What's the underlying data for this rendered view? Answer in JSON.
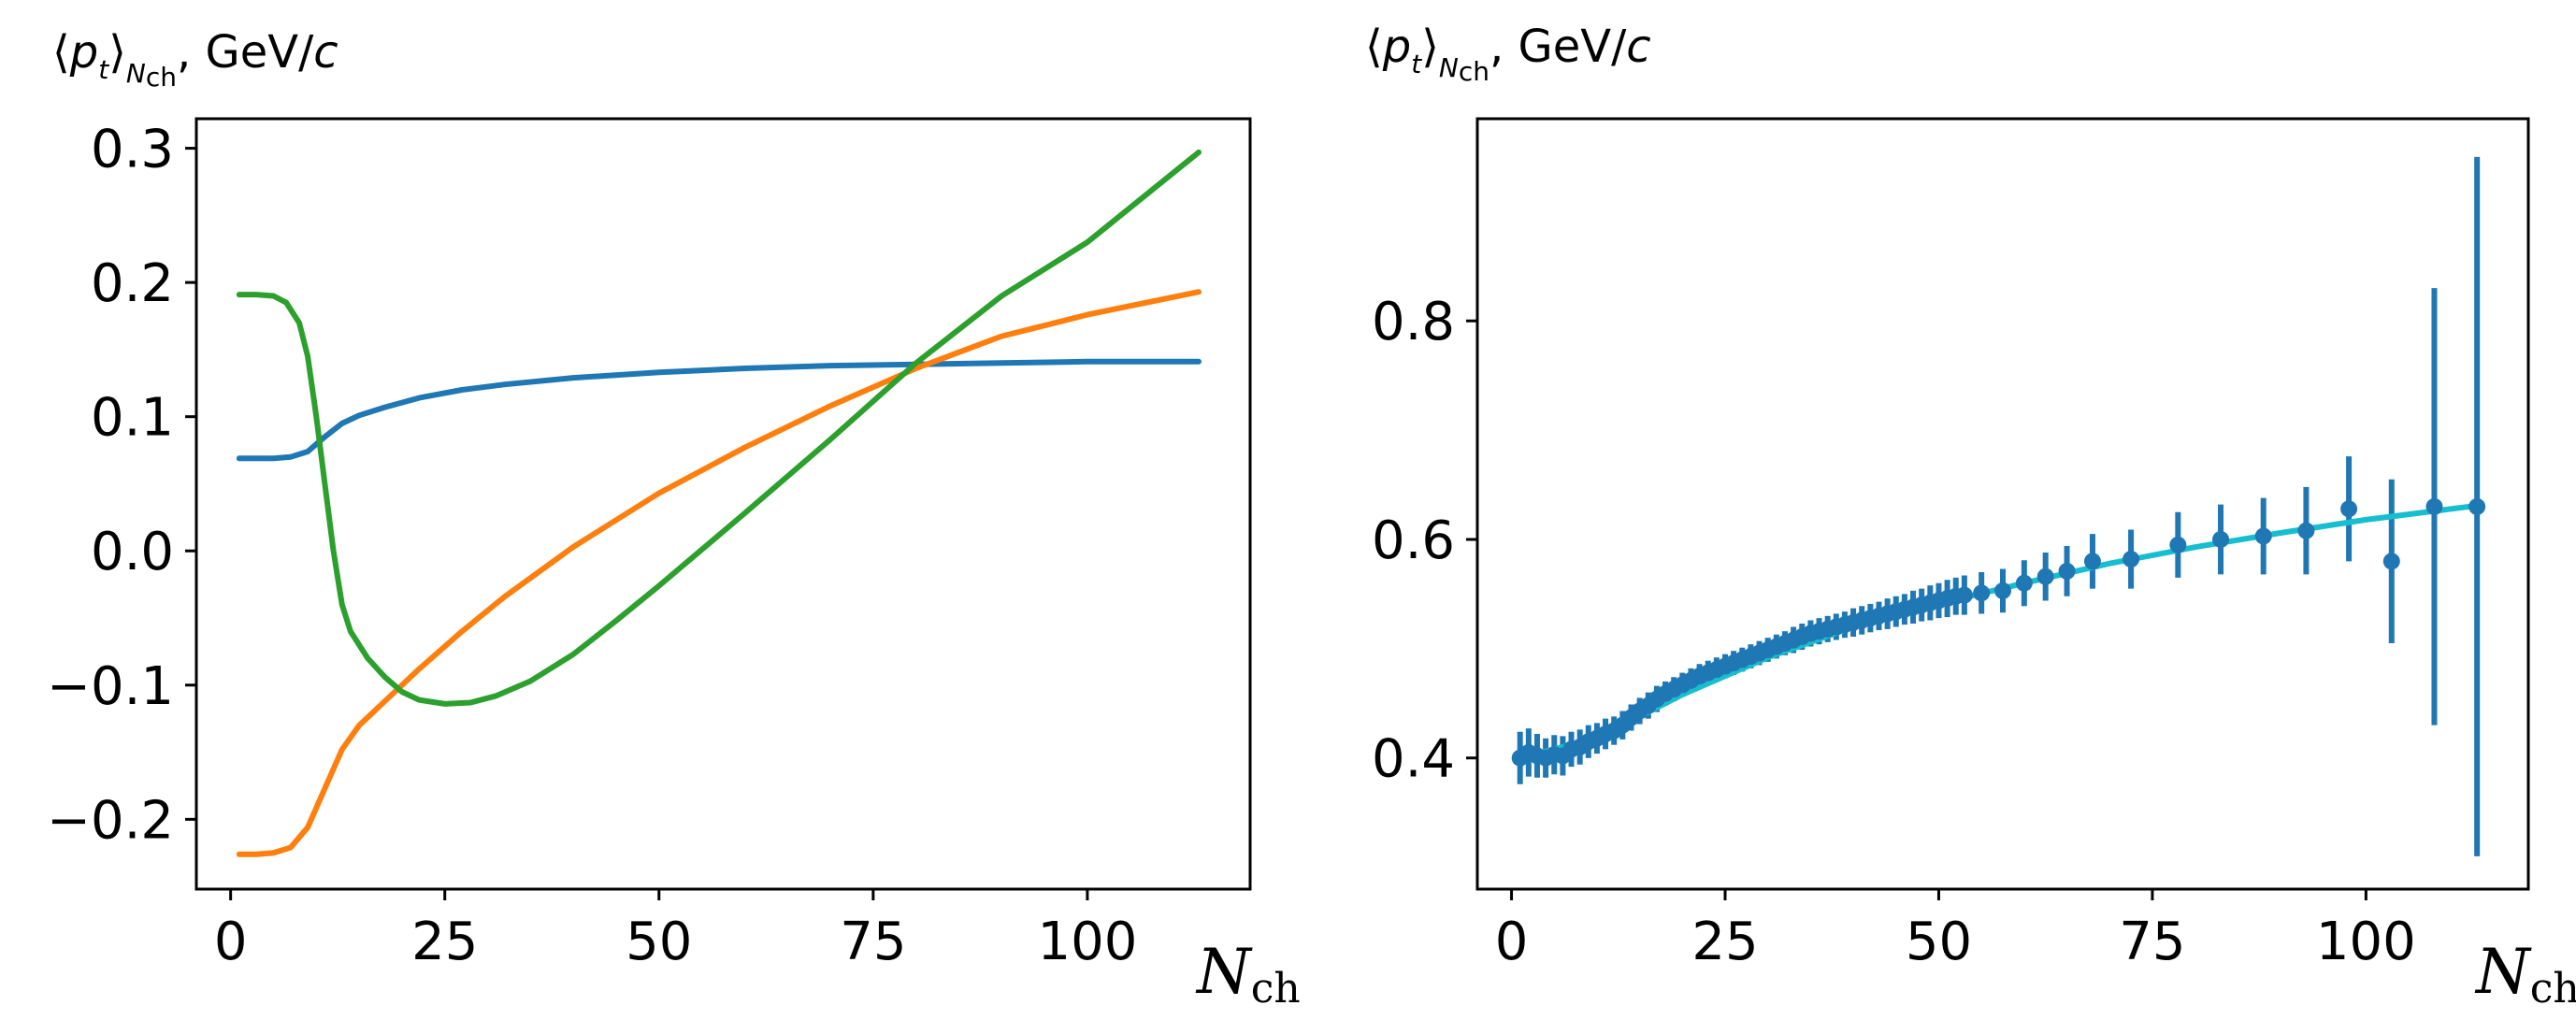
{
  "chart_data": [
    {
      "type": "line",
      "ylabel": {
        "bracket_open": "⟨",
        "symbol": "p",
        "symbol_sub": "t",
        "bracket_close": "⟩",
        "outer_sub": "N",
        "outer_sub_sub": "ch",
        "unit": ", GeV/",
        "unit_var": "c"
      },
      "xlabel": {
        "symbol": "N",
        "sub": "ch"
      },
      "xlim": [
        -4,
        119
      ],
      "ylim": [
        -0.252,
        0.322
      ],
      "xticks": [
        0,
        25,
        50,
        75,
        100
      ],
      "xtick_labels": [
        "0",
        "25",
        "50",
        "75",
        "100"
      ],
      "yticks": [
        -0.2,
        -0.1,
        0.0,
        0.1,
        0.2,
        0.3
      ],
      "ytick_labels": [
        "−0.2",
        "−0.1",
        "0.0",
        "0.1",
        "0.2",
        "0.3"
      ],
      "series": [
        {
          "name": "blue",
          "color": "#1f77b4",
          "x": [
            1,
            3,
            5,
            7,
            9,
            11,
            13,
            15,
            18,
            22,
            27,
            32,
            40,
            50,
            60,
            70,
            80,
            90,
            100,
            113
          ],
          "y": [
            0.069,
            0.069,
            0.069,
            0.07,
            0.074,
            0.085,
            0.095,
            0.101,
            0.107,
            0.114,
            0.12,
            0.124,
            0.129,
            0.133,
            0.136,
            0.138,
            0.139,
            0.14,
            0.141,
            0.141
          ]
        },
        {
          "name": "orange",
          "color": "#ff7f0e",
          "x": [
            1,
            3,
            5,
            7,
            9,
            11,
            13,
            15,
            18,
            22,
            27,
            32,
            40,
            50,
            60,
            70,
            80,
            90,
            100,
            113
          ],
          "y": [
            -0.226,
            -0.226,
            -0.225,
            -0.221,
            -0.206,
            -0.177,
            -0.148,
            -0.13,
            -0.112,
            -0.088,
            -0.06,
            -0.034,
            0.003,
            0.043,
            0.077,
            0.108,
            0.136,
            0.16,
            0.176,
            0.193
          ]
        },
        {
          "name": "green",
          "color": "#2ca02c",
          "x": [
            1,
            3,
            5,
            6.5,
            8,
            9,
            10,
            11,
            12,
            13,
            14,
            16,
            18,
            20,
            22,
            25,
            28,
            31,
            35,
            40,
            45,
            50,
            60,
            70,
            80,
            90,
            100,
            113
          ],
          "y": [
            0.191,
            0.191,
            0.19,
            0.185,
            0.17,
            0.145,
            0.1,
            0.05,
            0.0,
            -0.04,
            -0.06,
            -0.08,
            -0.094,
            -0.105,
            -0.111,
            -0.114,
            -0.113,
            -0.108,
            -0.097,
            -0.077,
            -0.052,
            -0.026,
            0.028,
            0.083,
            0.14,
            0.19,
            0.23,
            0.297
          ]
        }
      ]
    },
    {
      "type": "scatter",
      "ylabel": {
        "bracket_open": "⟨",
        "symbol": "p",
        "symbol_sub": "t",
        "bracket_close": "⟩",
        "outer_sub": "N",
        "outer_sub_sub": "ch",
        "unit": ", GeV/",
        "unit_var": "c"
      },
      "xlabel": {
        "symbol": "N",
        "sub": "ch"
      },
      "xlim": [
        -4,
        119
      ],
      "ylim": [
        0.28,
        0.985
      ],
      "xticks": [
        0,
        25,
        50,
        75,
        100
      ],
      "xtick_labels": [
        "0",
        "25",
        "50",
        "75",
        "100"
      ],
      "yticks": [
        0.4,
        0.6,
        0.8
      ],
      "ytick_labels": [
        "0.4",
        "0.6",
        "0.8"
      ],
      "fit_line": {
        "color": "#17becf",
        "x": [
          1,
          10,
          20,
          30,
          40,
          50,
          60,
          70,
          80,
          90,
          100,
          113
        ],
        "y": [
          0.4,
          0.418,
          0.458,
          0.492,
          0.52,
          0.541,
          0.56,
          0.578,
          0.593,
          0.606,
          0.618,
          0.631
        ]
      },
      "points": {
        "color": "#1f77b4",
        "x": [
          1,
          2,
          3,
          4,
          5,
          6,
          7,
          8,
          9,
          10,
          11,
          12,
          13,
          14,
          15,
          16,
          17,
          18,
          19,
          20,
          21,
          22,
          23,
          24,
          25,
          26,
          27,
          28,
          29,
          30,
          31,
          32,
          33,
          34,
          35,
          36,
          37,
          38,
          39,
          40,
          41,
          42,
          43,
          44,
          45,
          46,
          47,
          48,
          49,
          50,
          51,
          52,
          53,
          55,
          57.5,
          60,
          62.5,
          65,
          68,
          72.5,
          78,
          83,
          88,
          93,
          98,
          103,
          108,
          113
        ],
        "y": [
          0.4,
          0.405,
          0.402,
          0.4,
          0.403,
          0.402,
          0.408,
          0.41,
          0.415,
          0.418,
          0.422,
          0.425,
          0.43,
          0.437,
          0.443,
          0.448,
          0.454,
          0.459,
          0.463,
          0.467,
          0.471,
          0.475,
          0.478,
          0.481,
          0.484,
          0.487,
          0.49,
          0.493,
          0.496,
          0.499,
          0.502,
          0.505,
          0.508,
          0.511,
          0.514,
          0.516,
          0.518,
          0.52,
          0.522,
          0.524,
          0.526,
          0.528,
          0.53,
          0.532,
          0.534,
          0.536,
          0.538,
          0.54,
          0.542,
          0.544,
          0.546,
          0.548,
          0.549,
          0.551,
          0.553,
          0.56,
          0.566,
          0.571,
          0.58,
          0.582,
          0.595,
          0.6,
          0.603,
          0.608,
          0.628,
          0.58,
          0.63,
          0.63
        ],
        "err": [
          0.024,
          0.022,
          0.02,
          0.018,
          0.018,
          0.018,
          0.016,
          0.016,
          0.015,
          0.014,
          0.014,
          0.013,
          0.013,
          0.012,
          0.012,
          0.012,
          0.012,
          0.011,
          0.011,
          0.011,
          0.011,
          0.011,
          0.011,
          0.011,
          0.011,
          0.011,
          0.011,
          0.011,
          0.011,
          0.011,
          0.011,
          0.011,
          0.012,
          0.012,
          0.012,
          0.012,
          0.012,
          0.012,
          0.012,
          0.013,
          0.013,
          0.013,
          0.013,
          0.014,
          0.014,
          0.014,
          0.015,
          0.015,
          0.016,
          0.016,
          0.017,
          0.017,
          0.018,
          0.019,
          0.02,
          0.021,
          0.022,
          0.023,
          0.025,
          0.027,
          0.03,
          0.032,
          0.035,
          0.04,
          0.048,
          0.075,
          0.2,
          0.32
        ]
      }
    }
  ]
}
